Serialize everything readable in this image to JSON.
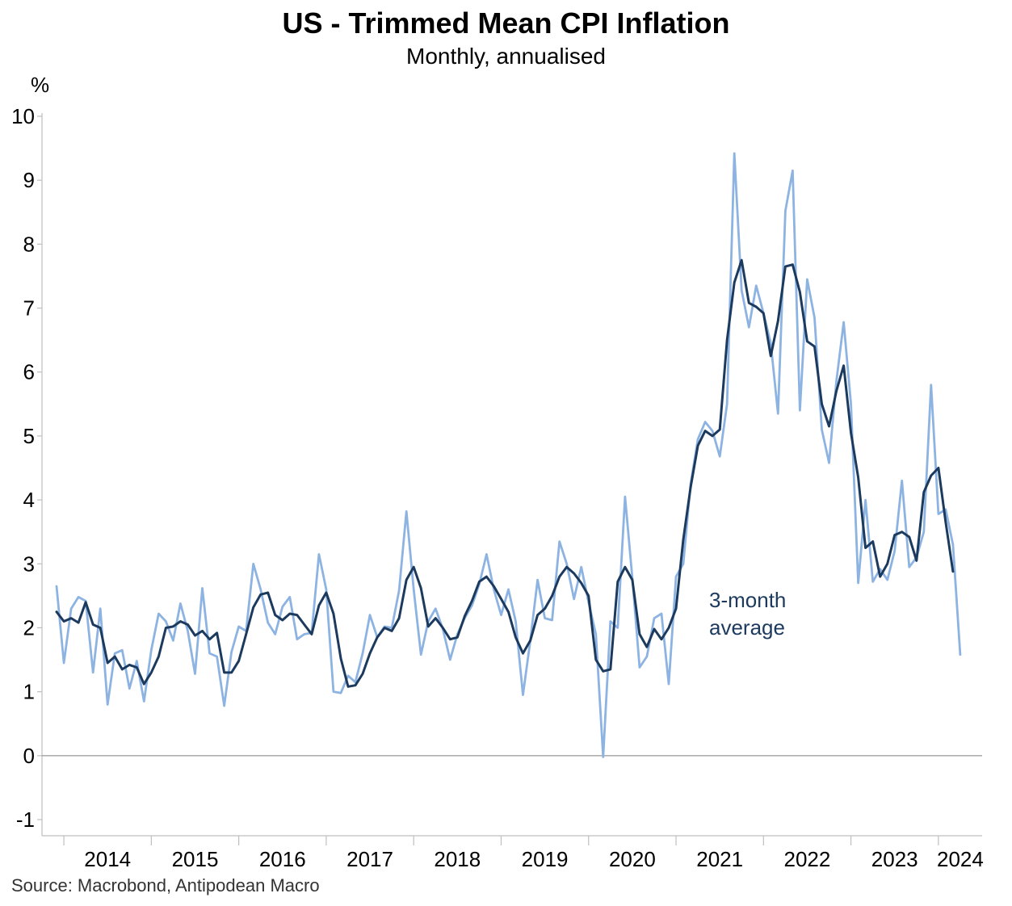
{
  "chart_data": {
    "type": "line",
    "title": "US - Trimmed Mean CPI Inflation",
    "subtitle": "Monthly, annualised",
    "ylabel": "%",
    "ylim": [
      -1,
      10
    ],
    "yticks": [
      "10",
      "9",
      "8",
      "7",
      "6",
      "5",
      "4",
      "3",
      "2",
      "1",
      "0",
      "-1"
    ],
    "xlim": [
      2013.75,
      2024.5
    ],
    "xtick_labels": [
      {
        "label": "2014",
        "year": 2014
      },
      {
        "label": "2015",
        "year": 2015
      },
      {
        "label": "2016",
        "year": 2016
      },
      {
        "label": "2017",
        "year": 2017
      },
      {
        "label": "2018",
        "year": 2018
      },
      {
        "label": "2019",
        "year": 2019
      },
      {
        "label": "2020",
        "year": 2020
      },
      {
        "label": "2021",
        "year": 2021
      },
      {
        "label": "2022",
        "year": 2022
      },
      {
        "label": "2023",
        "year": 2023
      },
      {
        "label": "2024",
        "year": 2024
      }
    ],
    "x_start": "2013-12",
    "x_step": "1 month",
    "grid": false,
    "series": [
      {
        "name": "",
        "color": "#8db3e2",
        "values": [
          2.65,
          1.45,
          2.3,
          2.48,
          2.42,
          1.3,
          2.3,
          0.8,
          1.6,
          1.65,
          1.05,
          1.48,
          0.85,
          1.65,
          2.22,
          2.1,
          1.8,
          2.38,
          1.95,
          1.28,
          2.62,
          1.6,
          1.55,
          0.78,
          1.62,
          2.02,
          1.95,
          3.0,
          2.6,
          2.08,
          1.9,
          2.33,
          2.48,
          1.82,
          1.9,
          1.92,
          3.15,
          2.6,
          1.0,
          0.98,
          1.25,
          1.15,
          1.6,
          2.2,
          1.85,
          2.02,
          2.0,
          2.58,
          3.82,
          2.6,
          1.58,
          2.1,
          2.3,
          1.98,
          1.5,
          1.9,
          2.15,
          2.35,
          2.68,
          3.15,
          2.6,
          2.2,
          2.6,
          2.1,
          0.95,
          1.8,
          2.75,
          2.15,
          2.12,
          3.35,
          3.0,
          2.45,
          2.95,
          2.4,
          1.9,
          -0.02,
          2.1,
          2.0,
          4.05,
          2.78,
          1.38,
          1.55,
          2.15,
          2.22,
          1.12,
          2.8,
          3.0,
          4.25,
          4.95,
          5.22,
          5.08,
          4.68,
          5.5,
          9.42,
          7.28,
          6.7,
          7.35,
          6.92,
          6.45,
          5.35,
          8.52,
          9.15,
          5.4,
          7.45,
          6.85,
          5.1,
          4.58,
          5.85,
          6.78,
          5.5,
          2.7,
          4.0,
          2.72,
          2.92,
          2.75,
          3.2,
          4.3,
          2.95,
          3.1,
          3.5,
          5.8,
          3.78,
          3.85,
          3.3,
          1.58
        ]
      },
      {
        "name": "3-month average",
        "color": "#1c3a5e",
        "values": [
          2.25,
          2.1,
          2.15,
          2.08,
          2.4,
          2.05,
          2.0,
          1.45,
          1.55,
          1.35,
          1.42,
          1.38,
          1.12,
          1.3,
          1.55,
          2.0,
          2.02,
          2.1,
          2.05,
          1.88,
          1.95,
          1.82,
          1.92,
          1.3,
          1.3,
          1.48,
          1.9,
          2.32,
          2.52,
          2.55,
          2.2,
          2.12,
          2.22,
          2.2,
          2.05,
          1.9,
          2.35,
          2.55,
          2.22,
          1.52,
          1.08,
          1.1,
          1.28,
          1.6,
          1.85,
          2.0,
          1.95,
          2.15,
          2.75,
          2.95,
          2.62,
          2.02,
          2.15,
          2.0,
          1.82,
          1.85,
          2.18,
          2.42,
          2.72,
          2.8,
          2.65,
          2.45,
          2.25,
          1.85,
          1.6,
          1.8,
          2.2,
          2.3,
          2.5,
          2.8,
          2.95,
          2.85,
          2.7,
          2.5,
          1.5,
          1.32,
          1.35,
          2.72,
          2.95,
          2.75,
          1.9,
          1.7,
          1.98,
          1.82,
          2.0,
          2.3,
          3.38,
          4.2,
          4.85,
          5.08,
          5.0,
          5.1,
          6.5,
          7.4,
          7.75,
          7.08,
          7.02,
          6.92,
          6.25,
          6.8,
          7.65,
          7.68,
          7.25,
          6.48,
          6.4,
          5.5,
          5.15,
          5.7,
          6.1,
          5.05,
          4.35,
          3.25,
          3.35,
          2.8,
          3.0,
          3.45,
          3.5,
          3.42,
          3.05,
          4.12,
          4.38,
          4.5,
          3.65,
          2.88
        ]
      }
    ],
    "annotations": [
      {
        "text": "3-month",
        "line": 1
      },
      {
        "text": "average",
        "line": 2
      }
    ]
  },
  "source": "Source: Macrobond, Antipodean Macro"
}
